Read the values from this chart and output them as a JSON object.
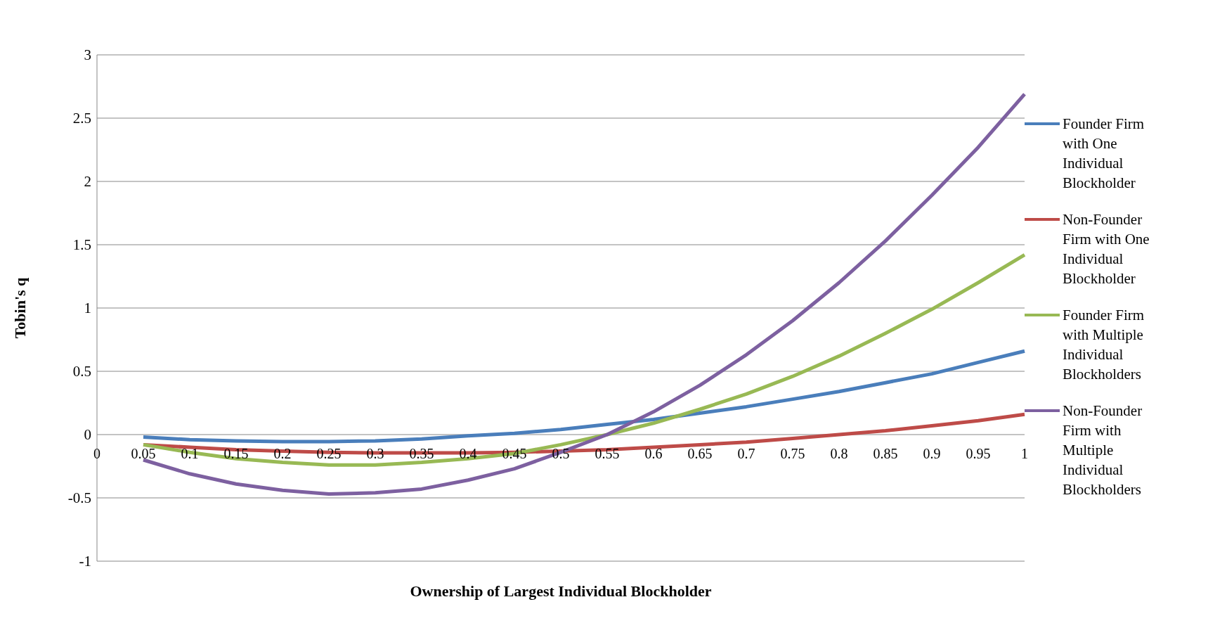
{
  "chart_data": {
    "type": "line",
    "xlabel": "Ownership of Largest Individual Blockholder",
    "ylabel": "Tobin's q",
    "categories": [
      "0",
      "0.05",
      "0.1",
      "0.15",
      "0.2",
      "0.25",
      "0.3",
      "0.35",
      "0.4",
      "0.45",
      "0.5",
      "0.55",
      "0.6",
      "0.65",
      "0.7",
      "0.75",
      "0.8",
      "0.85",
      "0.9",
      "0.95",
      "1"
    ],
    "series": [
      {
        "name": "Founder Firm with One Individual Blockholder",
        "color": "#4a7ebb",
        "values": [
          null,
          -0.02,
          -0.04,
          -0.05,
          -0.055,
          -0.055,
          -0.05,
          -0.035,
          -0.01,
          0.01,
          0.04,
          0.08,
          0.12,
          0.17,
          0.22,
          0.28,
          0.34,
          0.41,
          0.48,
          0.57,
          0.66
        ]
      },
      {
        "name": "Non-Founder Firm with One Individual Blockholder",
        "color": "#be4b48",
        "values": [
          null,
          -0.08,
          -0.1,
          -0.12,
          -0.13,
          -0.14,
          -0.145,
          -0.145,
          -0.145,
          -0.14,
          -0.13,
          -0.12,
          -0.1,
          -0.08,
          -0.06,
          -0.03,
          0,
          0.03,
          0.07,
          0.11,
          0.16
        ]
      },
      {
        "name": "Founder Firm with Multiple Individual Blockholders",
        "color": "#98b954",
        "values": [
          null,
          -0.08,
          -0.14,
          -0.19,
          -0.22,
          -0.24,
          -0.24,
          -0.22,
          -0.19,
          -0.15,
          -0.08,
          0,
          0.09,
          0.2,
          0.32,
          0.46,
          0.62,
          0.8,
          0.99,
          1.2,
          1.42
        ]
      },
      {
        "name": "Non-Founder Firm with Multiple Individual Blockholders",
        "color": "#7d60a0",
        "values": [
          null,
          -0.2,
          -0.31,
          -0.39,
          -0.44,
          -0.47,
          -0.46,
          -0.43,
          -0.36,
          -0.27,
          -0.14,
          0,
          0.18,
          0.39,
          0.63,
          0.9,
          1.2,
          1.53,
          1.89,
          2.27,
          2.69
        ]
      }
    ],
    "ylim": [
      -1,
      3
    ],
    "yticks": [
      -1,
      -0.5,
      0,
      0.5,
      1,
      1.5,
      2,
      2.5,
      3
    ],
    "grid": "y",
    "legend": "right",
    "marker": "none",
    "line_style": "solid"
  }
}
